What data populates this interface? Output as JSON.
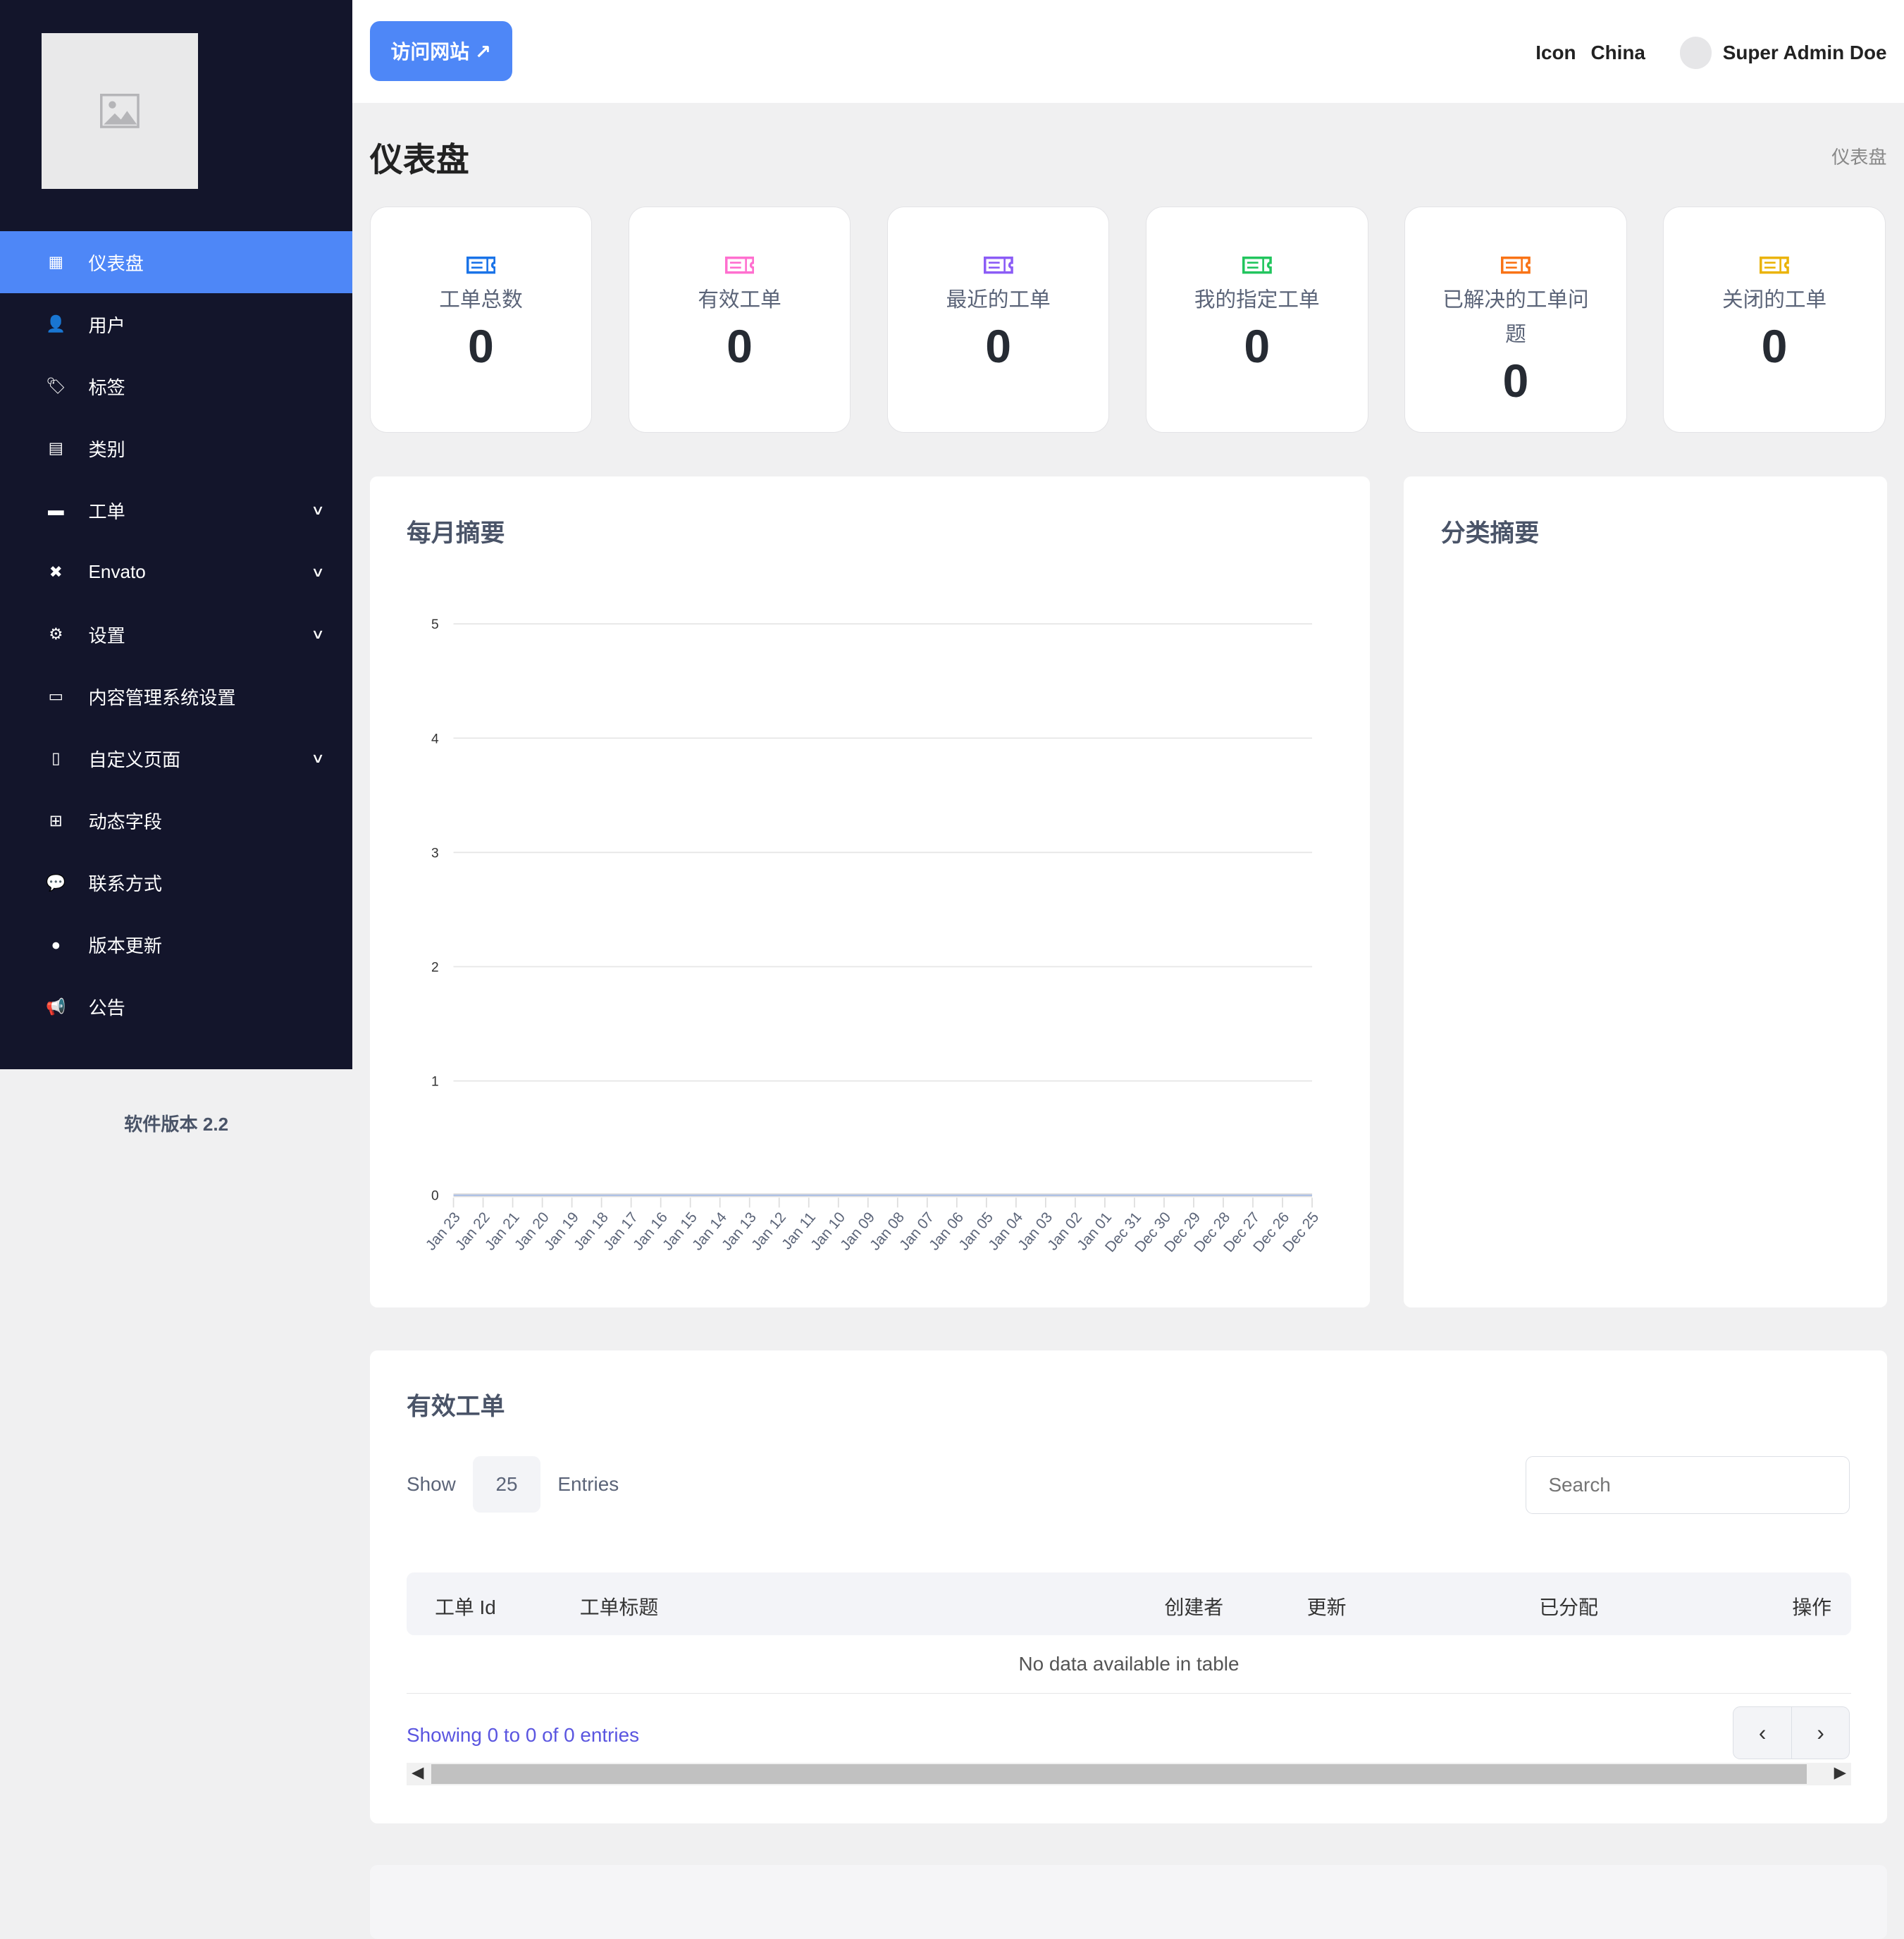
{
  "sidebar": {
    "items": [
      {
        "label": "仪表盘",
        "icon": "dashboard-icon",
        "active": true
      },
      {
        "label": "用户",
        "icon": "user-icon"
      },
      {
        "label": "标签",
        "icon": "tags-icon"
      },
      {
        "label": "类别",
        "icon": "category-icon"
      },
      {
        "label": "工单",
        "icon": "ticket-icon",
        "expandable": true
      },
      {
        "label": "Envato",
        "icon": "envato-icon",
        "expandable": true
      },
      {
        "label": "设置",
        "icon": "gear-icon",
        "expandable": true
      },
      {
        "label": "内容管理系统设置",
        "icon": "cms-settings-icon"
      },
      {
        "label": "自定义页面",
        "icon": "file-icon",
        "expandable": true
      },
      {
        "label": "动态字段",
        "icon": "plus-square-icon"
      },
      {
        "label": "联系方式",
        "icon": "comments-icon"
      },
      {
        "label": "版本更新",
        "icon": "circle-icon"
      },
      {
        "label": "公告",
        "icon": "megaphone-icon"
      }
    ],
    "version": "软件版本 2.2"
  },
  "topbar": {
    "visit_label": "访问网站 ↗",
    "icon_label": "Icon",
    "language": "China",
    "user": "Super Admin Doe"
  },
  "page": {
    "title": "仪表盘",
    "breadcrumb": "仪表盘"
  },
  "cards": [
    {
      "label": "工单总数",
      "value": "0",
      "color": "#1a73e8"
    },
    {
      "label": "有效工单",
      "value": "0",
      "color": "#ff6fcf"
    },
    {
      "label": "最近的工单",
      "value": "0",
      "color": "#8b5cf6"
    },
    {
      "label": "我的指定工单",
      "value": "0",
      "color": "#22c55e"
    },
    {
      "label": "已解决的工单问题",
      "value": "0",
      "color": "#f97316"
    },
    {
      "label": "关闭的工单",
      "value": "0",
      "color": "#eab308"
    }
  ],
  "monthly": {
    "title": "每月摘要"
  },
  "category": {
    "title": "分类摘要"
  },
  "chart_data": {
    "type": "line",
    "categories": [
      "Jan 23",
      "Jan 22",
      "Jan 21",
      "Jan 20",
      "Jan 19",
      "Jan 18",
      "Jan 17",
      "Jan 16",
      "Jan 15",
      "Jan 14",
      "Jan 13",
      "Jan 12",
      "Jan 11",
      "Jan 10",
      "Jan 09",
      "Jan 08",
      "Jan 07",
      "Jan 06",
      "Jan 05",
      "Jan 04",
      "Jan 03",
      "Jan 02",
      "Jan 01",
      "Dec 31",
      "Dec 30",
      "Dec 29",
      "Dec 28",
      "Dec 27",
      "Dec 26",
      "Dec 25"
    ],
    "values": [
      0,
      0,
      0,
      0,
      0,
      0,
      0,
      0,
      0,
      0,
      0,
      0,
      0,
      0,
      0,
      0,
      0,
      0,
      0,
      0,
      0,
      0,
      0,
      0,
      0,
      0,
      0,
      0,
      0,
      0
    ],
    "yticks": [
      "0",
      "1",
      "2",
      "3",
      "4",
      "5"
    ],
    "ylim": [
      0,
      5
    ],
    "grid": true
  },
  "table": {
    "title": "有效工单",
    "show": "Show",
    "entries_value": "25",
    "entries": "Entries",
    "search_placeholder": "Search",
    "columns": [
      "工单 Id",
      "工单标题",
      "创建者",
      "更新",
      "已分配",
      "操作"
    ],
    "empty": "No data available in table",
    "info": "Showing 0 to 0 of 0 entries",
    "prev": "‹",
    "next": "›"
  }
}
